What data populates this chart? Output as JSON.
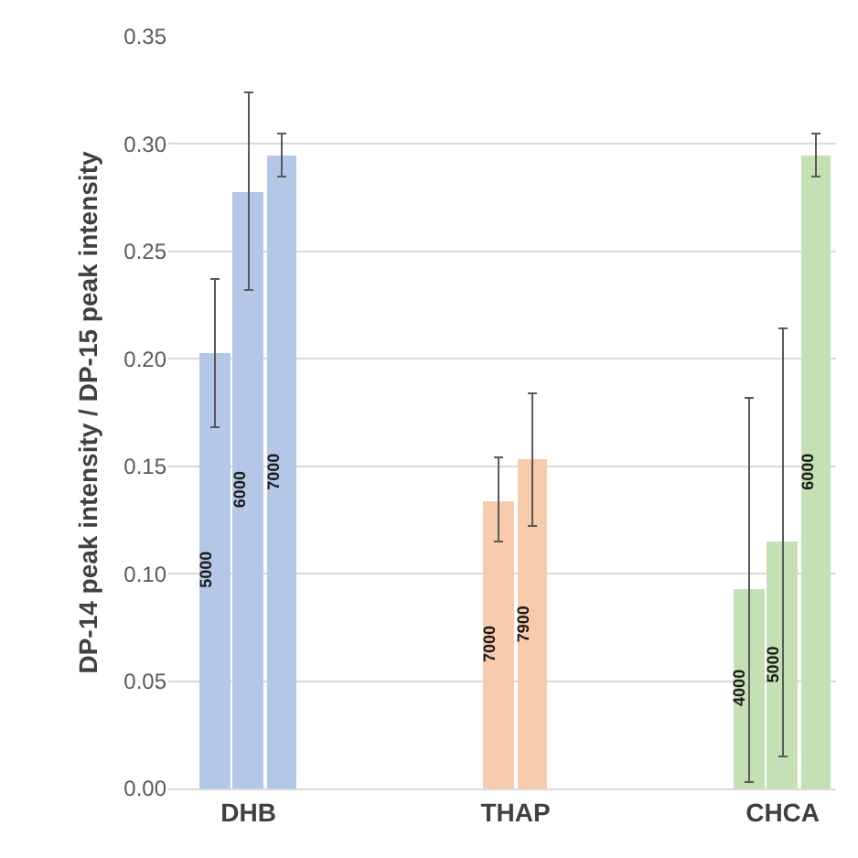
{
  "chart_data": {
    "type": "bar",
    "ylabel": "DP-14 peak intensity / DP-15 peak intensity",
    "categories": [
      "DHB",
      "THAP",
      "CHCA"
    ],
    "series": [
      {
        "colors": [
          "#b4c7e7",
          "#f8cbad",
          "#c5e0b4"
        ],
        "values": [
          0.203,
          0.134,
          0.093
        ],
        "errors": [
          [
            0.168,
            0.237
          ],
          [
            0.115,
            0.154
          ],
          [
            0.003,
            0.182
          ]
        ]
      },
      {
        "colors": [
          "#b4c7e7",
          "#f8cbad",
          "#c5e0b4"
        ],
        "values": [
          0.278,
          0.153,
          0.115
        ],
        "errors": [
          [
            0.232,
            0.324
          ],
          [
            0.122,
            0.184
          ],
          [
            0.015,
            0.214
          ]
        ]
      },
      {
        "colors": [
          "#b4c7e7",
          "#f8cbad",
          "#c5e0b4"
        ],
        "values": [
          0.295,
          null,
          0.295
        ],
        "errors": [
          [
            0.285,
            0.305
          ],
          null,
          [
            0.285,
            0.305
          ]
        ]
      }
    ],
    "annotations": [
      "5000",
      "6000",
      "7000",
      "7000",
      "7900",
      "4000",
      "5000",
      "6000"
    ],
    "ylim": [
      0,
      0.35
    ],
    "yticks": [
      {
        "value": 0,
        "label": "0.00"
      },
      {
        "value": 0.05,
        "label": "0.05"
      },
      {
        "value": 0.1,
        "label": "0.10"
      },
      {
        "value": 0.15,
        "label": "0.15"
      },
      {
        "value": 0.2,
        "label": "0.20"
      },
      {
        "value": 0.25,
        "label": "0.25"
      },
      {
        "value": 0.3,
        "label": "0.30"
      },
      {
        "value": 0.35,
        "label": "0.35"
      }
    ],
    "grid": "y"
  }
}
